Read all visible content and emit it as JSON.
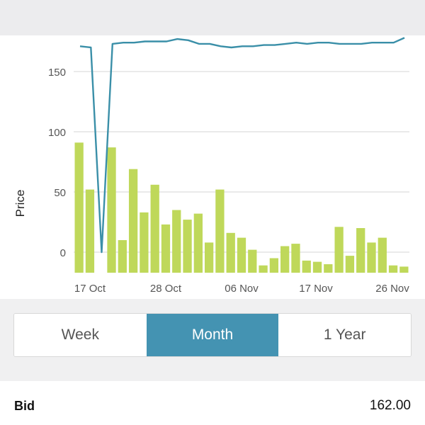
{
  "chart_data": {
    "type": "bar",
    "ylabel": "Price",
    "y_ticks": [
      "0",
      "50",
      "100",
      "150"
    ],
    "x_ticks": [
      "17 Oct",
      "28 Oct",
      "06 Nov",
      "17 Nov",
      "26 Nov"
    ],
    "ylim": [
      -18,
      185
    ],
    "grid": true,
    "colors": {
      "bars": "#bfd85a",
      "line": "#3a8fa8",
      "grid": "#d6d6d6"
    },
    "series": [
      {
        "type": "bar",
        "values": [
          91,
          52,
          null,
          87,
          10,
          69,
          33,
          56,
          23,
          35,
          27,
          32,
          8,
          52,
          16,
          12,
          2,
          -11,
          -5,
          5,
          7,
          -7,
          -8,
          -10,
          21,
          -3,
          20,
          8,
          12,
          -11,
          -12
        ]
      },
      {
        "type": "line",
        "values": [
          171,
          170,
          0,
          173,
          174,
          174,
          175,
          175,
          175,
          177,
          176,
          173,
          173,
          171,
          170,
          171,
          171,
          172,
          172,
          173,
          174,
          173,
          174,
          174,
          173,
          173,
          173,
          174,
          174,
          174,
          178
        ]
      }
    ]
  },
  "range_selector": {
    "options": [
      "Week",
      "Month",
      "1 Year"
    ],
    "selected": "Month"
  },
  "quote": {
    "bid_label": "Bid",
    "bid_value": "162.00"
  }
}
